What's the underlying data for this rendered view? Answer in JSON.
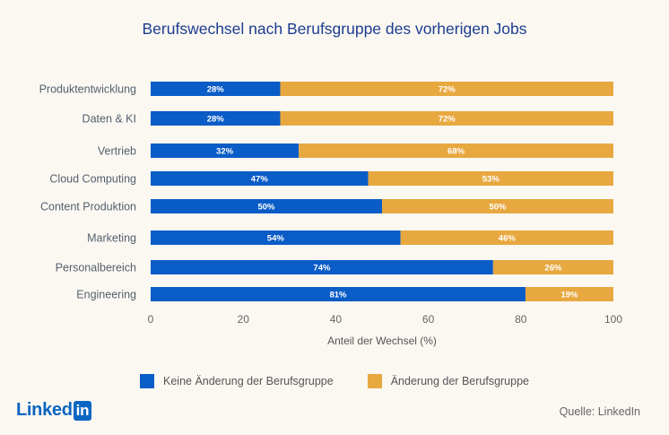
{
  "title": "Berufswechsel nach Berufsgruppe des vorherigen Jobs",
  "chart_data": {
    "type": "bar",
    "orientation": "horizontal",
    "stacked": true,
    "categories": [
      "Produktentwicklung",
      "Daten & KI",
      "Vertrieb",
      "Cloud Computing",
      "Content Produktion",
      "Marketing",
      "Personalbereich",
      "Engineering"
    ],
    "series": [
      {
        "name": "Keine Änderung der Berufsgruppe",
        "values": [
          28,
          28,
          32,
          47,
          50,
          54,
          74,
          81
        ],
        "labels": [
          "28%",
          "28%",
          "32%",
          "47%",
          "50%",
          "54%",
          "74%",
          "81%"
        ],
        "color": "#0a5cc7"
      },
      {
        "name": "Änderung der Berufsgruppe",
        "values": [
          72,
          72,
          68,
          53,
          50,
          46,
          26,
          19
        ],
        "labels": [
          "72%",
          "72%",
          "68%",
          "53%",
          "50%",
          "46%",
          "26%",
          "19%"
        ],
        "color": "#e8a840"
      }
    ],
    "xlabel": "Anteil der Wechsel (%)",
    "xlim": [
      0,
      100
    ],
    "xticks": [
      0,
      20,
      40,
      60,
      80,
      100
    ],
    "xtick_labels": [
      "0",
      "20",
      "40",
      "60",
      "80",
      "100"
    ],
    "legend_position": "bottom",
    "grid": false
  },
  "logo": {
    "text": "Linked",
    "box": "in"
  },
  "source": "Quelle: LinkedIn"
}
